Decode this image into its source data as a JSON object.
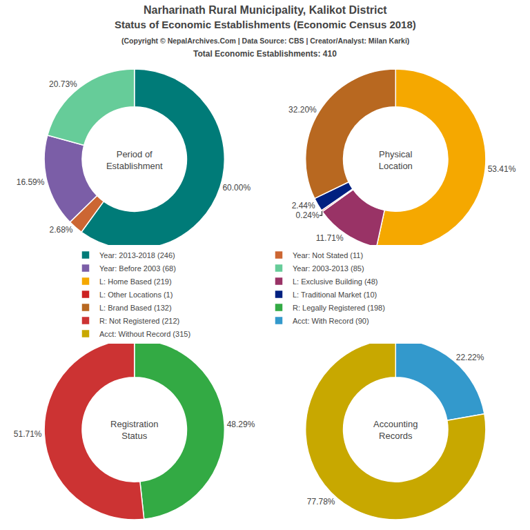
{
  "title": "Narharinath Rural Municipality, Kalikot District\nStatus of Economic Establishments (Economic Census 2018)",
  "subtitle": "(Copyright © NepalArchives.Com | Data Source: CBS | Creator/Analyst: Milan Karki)\nTotal Economic Establishments: 410",
  "legend": "center",
  "chart_data": [
    {
      "type": "pie",
      "title": "Period of\nEstablishment",
      "categories": [
        "Year: 2013-2018 (246)",
        "Year: Not Stated (11)",
        "Year: Before 2003 (68)",
        "Year: 2003-2013 (85)"
      ],
      "values": [
        60.0,
        2.68,
        16.59,
        20.73
      ],
      "value_labels": [
        "60.00%",
        "2.68%",
        "16.59%",
        "20.73%"
      ],
      "colors": [
        "#007b78",
        "#cc6633",
        "#7b5ea7",
        "#66cc99"
      ],
      "data_labels": true
    },
    {
      "type": "pie",
      "title": "Physical\nLocation",
      "categories": [
        "L: Home Based (219)",
        "L: Exclusive Building (48)",
        "L: Other Locations (1)",
        "L: Traditional Market (10)",
        "L: Brand Based (132)"
      ],
      "values": [
        53.41,
        11.71,
        0.24,
        2.44,
        32.2
      ],
      "value_labels": [
        "53.41%",
        "11.71%",
        "0.24%",
        "2.44%",
        "32.20%"
      ],
      "colors": [
        "#f5a800",
        "#993366",
        "#cc2222",
        "#002080",
        "#b86820"
      ],
      "data_labels": true
    },
    {
      "type": "pie",
      "title": "Registration\nStatus",
      "categories": [
        "R: Legally Registered (198)",
        "R: Not Registered (212)"
      ],
      "values": [
        48.29,
        51.71
      ],
      "value_labels": [
        "48.29%",
        "51.71%"
      ],
      "colors": [
        "#33aa44",
        "#cc3333"
      ],
      "data_labels": true
    },
    {
      "type": "pie",
      "title": "Accounting\nRecords",
      "categories": [
        "Acct: With Record (90)",
        "Acct: Without Record (315)"
      ],
      "values": [
        22.22,
        77.78
      ],
      "value_labels": [
        "22.22%",
        "77.78%"
      ],
      "colors": [
        "#3399cc",
        "#c8a800"
      ],
      "data_labels": true
    }
  ]
}
